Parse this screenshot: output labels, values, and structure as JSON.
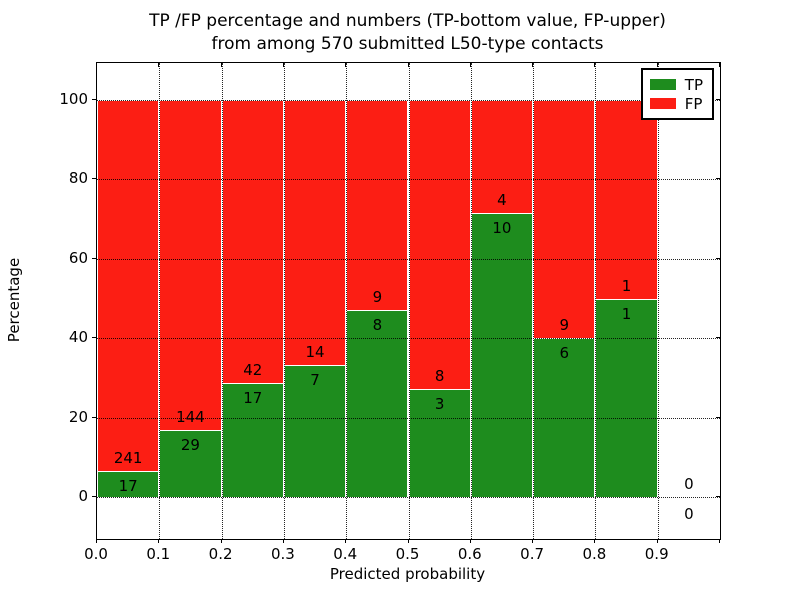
{
  "title": {
    "line1": "TP /FP percentage and numbers (TP-bottom value, FP-upper)",
    "line2": "from among 570 submitted L50-type contacts"
  },
  "axes": {
    "xlabel": "Predicted probability",
    "ylabel": "Percentage",
    "x_tick_labels": [
      "0.0",
      "0.1",
      "0.2",
      "0.3",
      "0.4",
      "0.5",
      "0.6",
      "0.7",
      "0.8",
      "0.9"
    ],
    "y_tick_labels": [
      "0",
      "20",
      "40",
      "60",
      "80",
      "100"
    ],
    "y_tick_values": [
      0,
      20,
      40,
      60,
      80,
      100
    ]
  },
  "legend": {
    "items": [
      {
        "label": "TP",
        "color": "#1e8c1e"
      },
      {
        "label": "FP",
        "color": "#fc1e14"
      }
    ]
  },
  "colors": {
    "tp_green": "#1e8c1e",
    "fp_red": "#fc1e14",
    "grid": "#000000",
    "background": "#ffffff"
  },
  "chart_data": {
    "type": "bar",
    "stacked": true,
    "normalized_to_percent": true,
    "title": "TP /FP percentage and numbers (TP-bottom value, FP-upper) from among 570 submitted L50-type contacts",
    "xlabel": "Predicted probability",
    "ylabel": "Percentage",
    "xlim": [
      0.0,
      1.0
    ],
    "ylim": [
      -11,
      109
    ],
    "grid": true,
    "legend_position": "upper right",
    "bin_width": 0.1,
    "bin_starts": [
      0.0,
      0.1,
      0.2,
      0.3,
      0.4,
      0.5,
      0.6,
      0.7,
      0.8,
      0.9
    ],
    "categories": [
      "0.0-0.1",
      "0.1-0.2",
      "0.2-0.3",
      "0.3-0.4",
      "0.4-0.5",
      "0.5-0.6",
      "0.6-0.7",
      "0.7-0.8",
      "0.8-0.9",
      "0.9-1.0"
    ],
    "series": [
      {
        "name": "TP",
        "color": "#1e8c1e",
        "values": [
          17,
          29,
          17,
          7,
          8,
          3,
          10,
          6,
          1,
          0
        ]
      },
      {
        "name": "FP",
        "color": "#fc1e14",
        "values": [
          241,
          144,
          42,
          14,
          9,
          8,
          4,
          9,
          1,
          0
        ]
      }
    ],
    "tp_percent_of_bin": [
      6.59,
      16.76,
      28.81,
      33.33,
      47.06,
      27.27,
      71.43,
      40.0,
      50.0,
      null
    ],
    "total_contacts": 570
  }
}
